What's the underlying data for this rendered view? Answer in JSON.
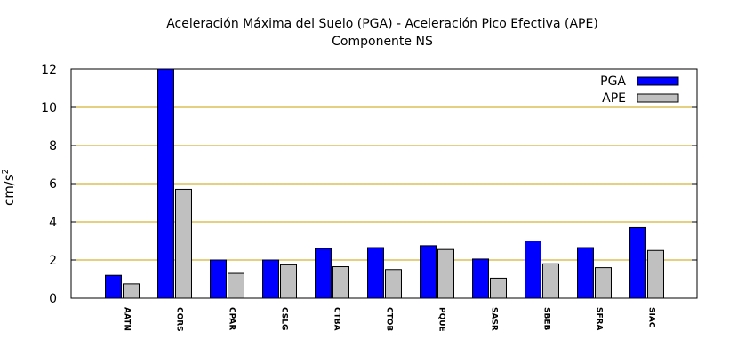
{
  "chart_data": {
    "type": "bar",
    "title": "Aceleración Máxima del Suelo (PGA) -  Aceleración Pico Efectiva (APE)",
    "subtitle": "Componente NS",
    "ylabel": "cm/s",
    "ylabel_superscript": "2",
    "xlabel": "",
    "ylim": [
      0,
      12
    ],
    "yticks": [
      0,
      2,
      4,
      6,
      8,
      10,
      12
    ],
    "grid": "horizontal",
    "legend_position": "top-right",
    "categories": [
      "AATN",
      "CORS",
      "CPAR",
      "CSLG",
      "CTBA",
      "CTOB",
      "PQUE",
      "SASR",
      "SBEB",
      "SFRA",
      "SIAC"
    ],
    "series": [
      {
        "name": "PGA",
        "color": "#0000ff",
        "values": [
          1.2,
          12.0,
          2.0,
          2.0,
          2.6,
          2.65,
          2.75,
          2.05,
          3.0,
          2.65,
          3.7
        ]
      },
      {
        "name": "APE",
        "color": "#c0c0c0",
        "values": [
          0.75,
          5.7,
          1.3,
          1.75,
          1.65,
          1.5,
          2.55,
          1.05,
          1.8,
          1.6,
          2.5
        ]
      }
    ],
    "grid_color": "#c8a000"
  }
}
